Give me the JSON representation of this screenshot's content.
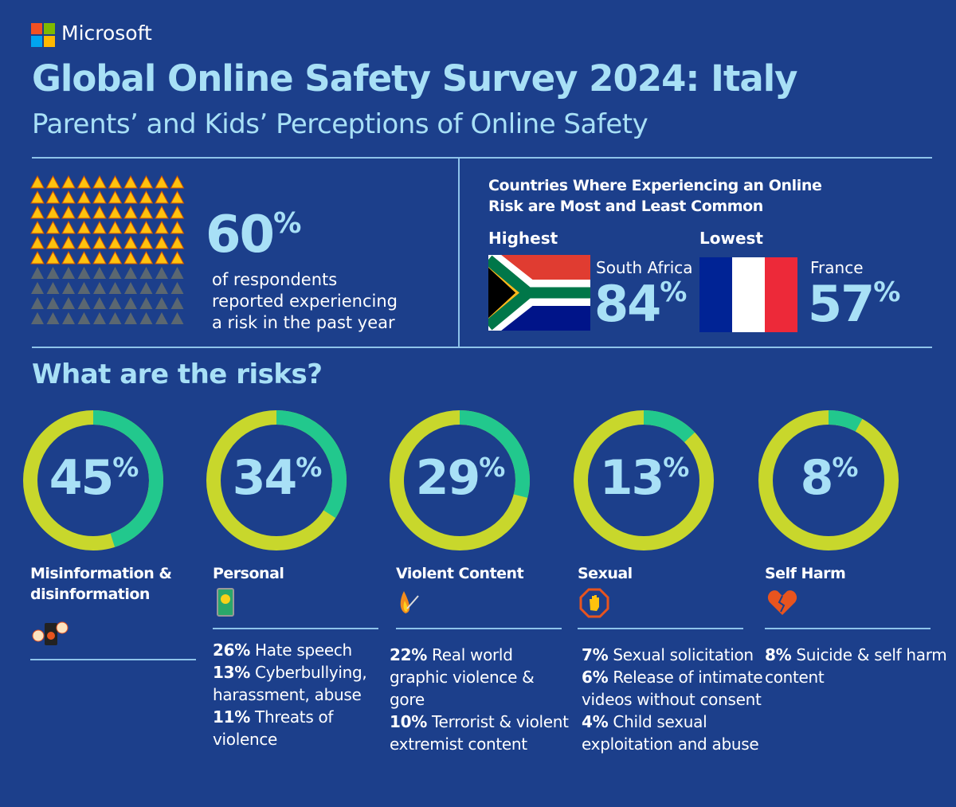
{
  "brand": "Microsoft",
  "title": "Global Online Safety Survey 2024: Italy",
  "subtitle": "Parents’ and Kids’ Perceptions of Online Safety",
  "overall": {
    "value": "60",
    "pct": "%",
    "fraction": 0.6,
    "caption": [
      "of respondents",
      "reported experiencing",
      "a risk in the past year"
    ]
  },
  "countries": {
    "heading": [
      "Countries Where Experiencing an Online",
      "Risk are Most and Least Common"
    ],
    "highest": {
      "label": "Highest",
      "country": "South Africa",
      "value": "84",
      "pct": "%"
    },
    "lowest": {
      "label": "Lowest",
      "country": "France",
      "value": "57",
      "pct": "%"
    }
  },
  "risks_heading": "What are the risks?",
  "colors": {
    "bg": "#1c3f8b",
    "ring": "#c8d72c",
    "fill": "#22c88d",
    "text": "#a8e0f6"
  },
  "chart_data": {
    "type": "pie",
    "title": "What are the risks?",
    "series": [
      {
        "name": "Misinformation & disinformation",
        "value": 45
      },
      {
        "name": "Personal",
        "value": 34
      },
      {
        "name": "Violent Content",
        "value": 29
      },
      {
        "name": "Sexual",
        "value": 13
      },
      {
        "name": "Self Harm",
        "value": 8
      }
    ]
  },
  "risks": [
    {
      "label": "45",
      "pct": "%",
      "cat": [
        "Misinformation &",
        "disinformation"
      ],
      "icon": "phone-alert-icon",
      "details": []
    },
    {
      "label": "34",
      "pct": "%",
      "cat": [
        "Personal"
      ],
      "icon": "phone-face-icon",
      "details": [
        [
          "26%",
          " Hate speech"
        ],
        [
          "13%",
          " Cyberbullying, harassment, abuse"
        ],
        [
          "11%",
          " Threats of violence"
        ]
      ]
    },
    {
      "label": "29",
      "pct": "%",
      "cat": [
        "Violent Content"
      ],
      "icon": "fire-match-icon",
      "details": [
        [
          "22%",
          " Real world graphic violence & gore"
        ],
        [
          "10%",
          " Terrorist & violent extremist content"
        ]
      ]
    },
    {
      "label": "13",
      "pct": "%",
      "cat": [
        "Sexual"
      ],
      "icon": "stop-hand-icon",
      "details": [
        [
          "7%",
          " Sexual solicitation"
        ],
        [
          "6%",
          " Release of intimate videos without consent"
        ],
        [
          "4%",
          " Child sexual exploitation and abuse"
        ]
      ]
    },
    {
      "label": "8",
      "pct": "%",
      "cat": [
        "Self Harm"
      ],
      "icon": "broken-heart-icon",
      "details": [
        [
          "8%",
          " Suicide & self harm content"
        ]
      ]
    }
  ]
}
